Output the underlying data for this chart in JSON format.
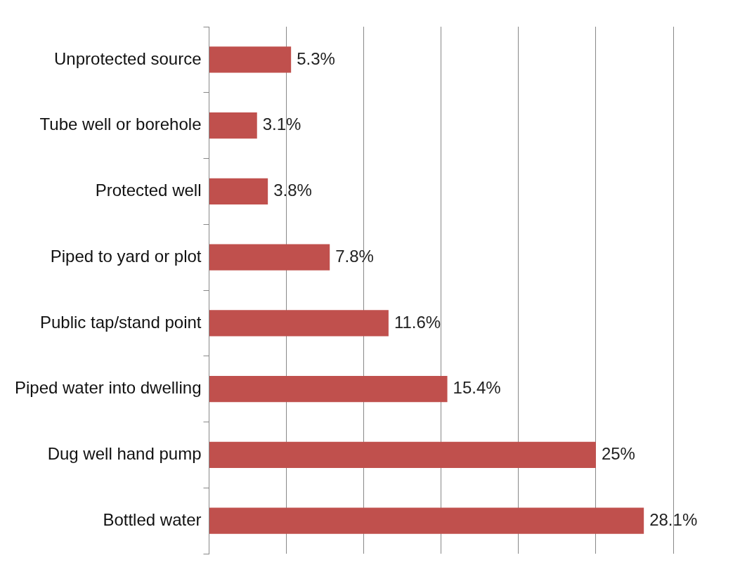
{
  "chart_data": {
    "type": "bar",
    "orientation": "horizontal",
    "categories": [
      "Unprotected source",
      "Tube well or borehole",
      "Protected well",
      "Piped to yard or plot",
      "Public tap/stand point",
      "Piped water into dwelling",
      "Dug well hand pump",
      "Bottled water"
    ],
    "values": [
      5.3,
      3.1,
      3.8,
      7.8,
      11.6,
      15.4,
      25,
      28.1
    ],
    "value_labels": [
      "5.3%",
      "3.1%",
      "3.8%",
      "7.8%",
      "11.6%",
      "15.4%",
      "25%",
      "28.1%"
    ],
    "color": "#c0504d",
    "xlim": [
      0,
      30
    ],
    "xticks": [
      {
        "value": 0,
        "label": null
      },
      {
        "value": 5,
        "label": null
      },
      {
        "value": 10,
        "label": null
      },
      {
        "value": 15,
        "label": null
      },
      {
        "value": 20,
        "label": null
      },
      {
        "value": 25,
        "label": null
      },
      {
        "value": 30,
        "label": null
      }
    ],
    "grid": "x",
    "tick_labels": "y",
    "legend": false
  }
}
